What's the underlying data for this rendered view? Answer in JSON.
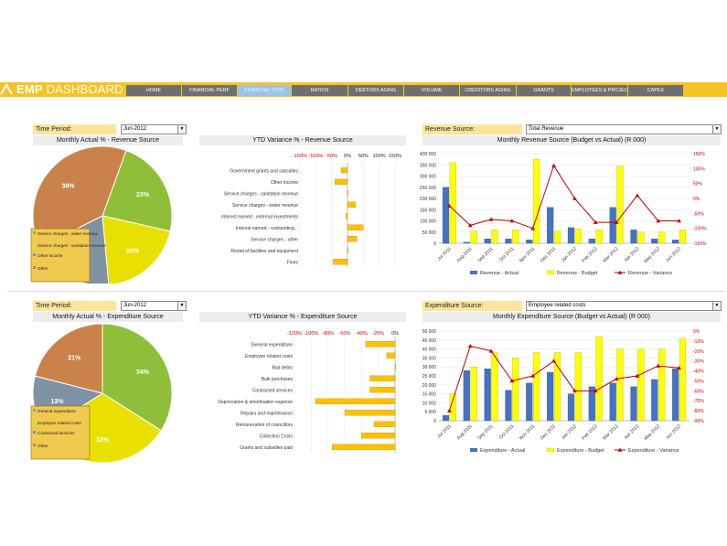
{
  "app": {
    "title_bold": "EMP",
    "title_rest": " DASHBOARD"
  },
  "nav": [
    {
      "label": "HOME"
    },
    {
      "label": "FINANCIAL PERF"
    },
    {
      "label": "FINANCIAL TYPE",
      "selected": true
    },
    {
      "label": "RATIOS"
    },
    {
      "label": "DEBTORS AGING"
    },
    {
      "label": "VOLUME"
    },
    {
      "label": "CREDITORS AGING"
    },
    {
      "label": "GRANTS"
    },
    {
      "label": "EMPLOYEES & PROJECTS"
    },
    {
      "label": "CAPEX"
    }
  ],
  "colors": {
    "accent": "#f6c327",
    "actual": "#4472c4",
    "budget": "#ffff00",
    "variance": "#c00000",
    "hbar": "#ffc000"
  },
  "revenue": {
    "period_label": "Time Period:",
    "period_value": "Jun-2012",
    "source_label": "Revenue Source:",
    "source_value": "Total Revenue",
    "mar_title": "Monthly Actual  % - Revenue Source",
    "var_title": "YTD Variance % - Revenue Source",
    "col_title": "Monthly Revenue Source (Budget vs Actual) (R 000)"
  },
  "expenditure": {
    "period_label": "Time Period:",
    "period_value": "Jun-2012",
    "source_label": "Expenditure Source:",
    "source_value": "Employee related costs",
    "mar_title": "Monthly Actual  % - Expenditure Source",
    "var_title": "YTD Variance % - Expenditure  Source",
    "col_title": "Monthly Expenditure Source (Budget vs Actual) (R 000)"
  },
  "chart_data": [
    {
      "type": "pie",
      "title": "Monthly Actual  % - Revenue Source",
      "slices": [
        {
          "name": "Service charges - water revenue",
          "value": 23,
          "label": "23%",
          "color": "#8fbf3a"
        },
        {
          "name": "Service charges - sanitation revenue",
          "value": 20,
          "label": "20%",
          "color": "#e8e000"
        },
        {
          "name": "Other income",
          "value": 19,
          "label": "19%",
          "color": "#7f93a5"
        },
        {
          "name": "Other",
          "value": 38,
          "label": "38%",
          "color": "#c9824a"
        }
      ],
      "legend": [
        "Service charges - water revenue",
        "Service charges - sanitation revenue",
        "Other income",
        "Other"
      ],
      "legend_position": "bottom-left"
    },
    {
      "type": "bar",
      "orientation": "horizontal",
      "title": "YTD Variance % - Revenue Source",
      "categories": [
        "Government grants and subsidies",
        "Other income",
        "Service charges - sanitation revenue",
        "Service charges - water revenue",
        "Interest earned - external investments",
        "Interest earned - outstanding...",
        "Service charges - other",
        "Rental of facilities and equipment",
        "Fines"
      ],
      "values": [
        -20,
        -40,
        0,
        25,
        -5,
        50,
        30,
        0,
        -45
      ],
      "ticks": [
        "-150%",
        "-100%",
        "-50%",
        "0%",
        "50%",
        "100%",
        "150%"
      ],
      "xlim": [
        -150,
        150
      ]
    },
    {
      "type": "bar",
      "title": "Monthly Revenue Source (Budget vs Actual) (R 000)",
      "categories": [
        "Jul 2011",
        "Aug 2011",
        "Sep 2011",
        "Oct 2011",
        "Nov 2011",
        "Dec 2011",
        "Jan 2012",
        "Feb 2012",
        "Mar 2012",
        "Apr 2012",
        "May 2012",
        "Jun 2012"
      ],
      "series": [
        {
          "name": "Revenue - Actual",
          "type": "bar",
          "axis": "left",
          "values": [
            250000,
            5000,
            20000,
            20000,
            15000,
            160000,
            70000,
            20000,
            160000,
            60000,
            20000,
            15000
          ]
        },
        {
          "name": "Revenue - Budget",
          "type": "bar",
          "axis": "left",
          "values": [
            360000,
            55000,
            60000,
            60000,
            375000,
            55000,
            65000,
            60000,
            345000,
            50000,
            50000,
            60000
          ]
        },
        {
          "name": "Revenue - Variance",
          "type": "line",
          "axis": "right",
          "values": [
            -25,
            -90,
            -70,
            -75,
            -100,
            110,
            0,
            -80,
            -80,
            10,
            -75,
            -75
          ]
        }
      ],
      "yticks_left": [
        "0",
        "50 000",
        "100 000",
        "150 000",
        "200 000",
        "250 000",
        "300 000",
        "350 000",
        "400 000"
      ],
      "yticks_right": [
        "-150%",
        "-100%",
        "-50%",
        "0%",
        "50%",
        "100%",
        "150%"
      ],
      "ylim": [
        0,
        400000
      ],
      "ylim_right": [
        -150,
        150
      ]
    },
    {
      "type": "pie",
      "title": "Monthly Actual  % - Expenditure Source",
      "slices": [
        {
          "name": "General expenditure",
          "value": 34,
          "label": "34%",
          "color": "#8fbf3a"
        },
        {
          "name": "Employee related costs",
          "value": 32,
          "label": "32%",
          "color": "#e8e000"
        },
        {
          "name": "Contracted services",
          "value": 13,
          "label": "13%",
          "color": "#7f93a5"
        },
        {
          "name": "Other",
          "value": 21,
          "label": "21%",
          "color": "#c9824a"
        }
      ],
      "legend": [
        "General expenditure",
        "Employee related costs",
        "Contracted services",
        "Other"
      ],
      "legend_position": "bottom-left"
    },
    {
      "type": "bar",
      "orientation": "horizontal",
      "title": "YTD Variance % - Expenditure  Source",
      "categories": [
        "General expenditure",
        "Employee related costs",
        "Bad debts",
        "Bulk purchases",
        "Contracted services",
        "Depreciation & amortisation expense",
        "Repairs and maintenance",
        "Remuneration of councillors",
        "Collection Costs",
        "Grants and subsidies paid"
      ],
      "values": [
        -35,
        -10,
        0,
        -30,
        -30,
        -95,
        -60,
        -25,
        -40,
        -75
      ],
      "ticks": [
        "-120%",
        "-100%",
        "-80%",
        "-60%",
        "-40%",
        "-20%",
        "0%"
      ],
      "xlim": [
        -120,
        0
      ]
    },
    {
      "type": "bar",
      "title": "Monthly Expenditure Source (Budget vs Actual) (R 000)",
      "categories": [
        "Jul 2011",
        "Aug 2011",
        "Sep 2011",
        "Oct 2011",
        "Nov 2011",
        "Dec 2011",
        "Jan 2012",
        "Feb 2012",
        "Mar 2012",
        "Apr 2012",
        "May 2012",
        "Jun 2012"
      ],
      "series": [
        {
          "name": "Expenditure - Actual",
          "type": "bar",
          "axis": "left",
          "values": [
            3000,
            28000,
            29000,
            17000,
            21000,
            27000,
            15000,
            19000,
            21000,
            19000,
            23000,
            29000
          ]
        },
        {
          "name": "Expenditure - Budget",
          "type": "bar",
          "axis": "left",
          "values": [
            15000,
            30000,
            38000,
            35000,
            38000,
            38000,
            38000,
            47000,
            40000,
            40000,
            40000,
            46000
          ]
        },
        {
          "name": "Expenditure - Variance",
          "type": "line",
          "axis": "right",
          "values": [
            -80,
            -15,
            -20,
            -50,
            -45,
            -30,
            -60,
            -60,
            -48,
            -45,
            -35,
            -37
          ]
        }
      ],
      "yticks_left": [
        "0",
        "5 000",
        "10 000",
        "15 000",
        "20 000",
        "25 000",
        "30 000",
        "35 000",
        "40 000",
        "45 000",
        "50 000"
      ],
      "yticks_right": [
        "-90%",
        "-80%",
        "-70%",
        "-60%",
        "-50%",
        "-40%",
        "-30%",
        "-20%",
        "-10%",
        "0%"
      ],
      "ylim": [
        0,
        50000
      ],
      "ylim_right": [
        -90,
        0
      ]
    }
  ]
}
